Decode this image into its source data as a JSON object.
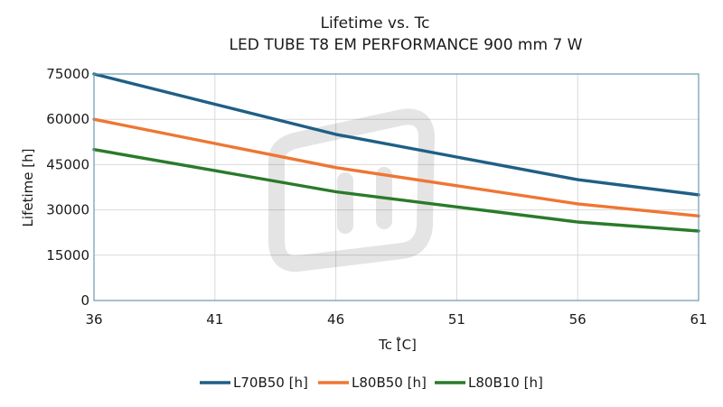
{
  "chart_data": {
    "type": "line",
    "title": "Lifetime vs. Tc",
    "subtitle": "LED TUBE T8 EM PERFORMANCE 900 mm 7 W",
    "xlabel": "Tc [̊C]",
    "ylabel": "Lifetime [h]",
    "xlim": [
      36,
      61
    ],
    "ylim": [
      0,
      75000
    ],
    "xticks": [
      "36",
      "41",
      "46",
      "51",
      "56",
      "61"
    ],
    "yticks": [
      "0",
      "15000",
      "30000",
      "45000",
      "60000",
      "75000"
    ],
    "grid": true,
    "legend_position": "bottom-center",
    "x": [
      36,
      41,
      46,
      51,
      56,
      61
    ],
    "series": [
      {
        "name": "L70B50 [h]",
        "color": "#1f5f85",
        "values": [
          75000,
          65000,
          55000,
          47500,
          40000,
          35000
        ]
      },
      {
        "name": "L80B50 [h]",
        "color": "#ee7633",
        "values": [
          60000,
          52000,
          44000,
          38000,
          32000,
          28000
        ]
      },
      {
        "name": "L80B10 [h]",
        "color": "#2a7a2a",
        "values": [
          50000,
          43000,
          36000,
          31000,
          26000,
          23000
        ]
      }
    ]
  }
}
